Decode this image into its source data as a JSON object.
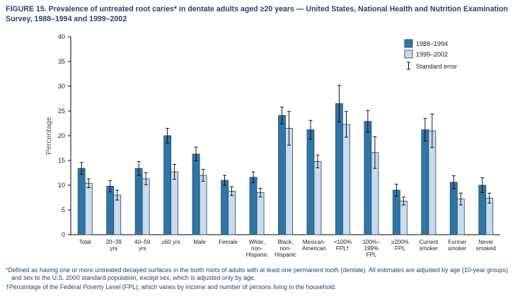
{
  "title": "FIGURE 15. Prevalence of untreated root caries* in dentate adults aged ≥20 years — United States, National Health and Nutrition Examination Survey, 1988–1994 and 1999–2002",
  "chart_data": {
    "type": "bar",
    "title": "",
    "xlabel": "",
    "ylabel": "Percentage",
    "ylim": [
      0,
      40
    ],
    "ytick_step": 5,
    "grid": false,
    "legend_position": "top-right",
    "legend_error_label": "Standard error",
    "categories": [
      [
        "Total"
      ],
      [
        "20–39",
        "yrs"
      ],
      [
        "40–59",
        "yrs"
      ],
      [
        "≥60 yrs"
      ],
      [
        "Male"
      ],
      [
        "Female"
      ],
      [
        "White,",
        "non-",
        "Hispanic"
      ],
      [
        "Black,",
        "non-",
        "Hispanic"
      ],
      [
        "Mexican-",
        "American"
      ],
      [
        "<100%",
        "FPL†"
      ],
      [
        "100%–",
        "199%",
        "FPL"
      ],
      [
        "≥200%",
        "FPL"
      ],
      [
        "Current",
        "smoker"
      ],
      [
        "Former",
        "smoker"
      ],
      [
        "Never",
        "smoked"
      ]
    ],
    "series": [
      {
        "name": "1988–1994",
        "color": "#2E76A6",
        "values": [
          13.4,
          9.8,
          13.4,
          20.0,
          16.3,
          11.0,
          11.6,
          24.1,
          21.2,
          26.5,
          22.9,
          9.0,
          21.2,
          10.6,
          10.0
        ],
        "se": [
          1.2,
          1.1,
          1.4,
          1.5,
          1.4,
          1.0,
          1.1,
          1.7,
          1.9,
          3.7,
          2.2,
          1.2,
          2.3,
          1.3,
          1.5
        ]
      },
      {
        "name": "1999–2002",
        "color": "#C9DBEC",
        "values": [
          10.4,
          8.0,
          11.3,
          12.7,
          12.0,
          8.8,
          8.5,
          21.5,
          14.8,
          22.3,
          16.6,
          6.8,
          21.0,
          7.2,
          7.4
        ],
        "se": [
          0.9,
          1.0,
          1.2,
          1.5,
          1.2,
          0.9,
          0.9,
          3.4,
          1.3,
          2.6,
          3.2,
          0.8,
          3.4,
          1.2,
          1.0
        ]
      }
    ]
  },
  "footnotes": [
    {
      "marker": "*",
      "text": "Defined as having one or more untreated decayed surfaces in the tooth roots of adults with at least one permanent tooth (dentate). All estimates are adjusted by age (10-year groups) and sex to the U.S. 2000 standard population, except sex, which is adjusted only by age."
    },
    {
      "marker": "†",
      "text": "Percentage of the Federal Poverty Level (FPL), which varies by income and number of persons living in the household."
    }
  ]
}
